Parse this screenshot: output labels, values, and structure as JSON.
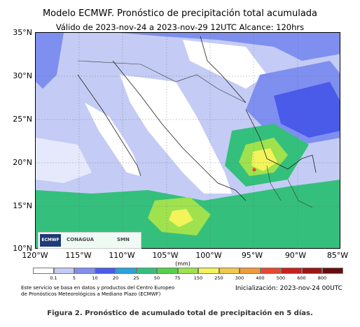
{
  "header": {
    "title": "Modelo ECMWF. Pronóstico de precipitación total acumulada",
    "subtitle": "Válido de 2023-nov-24 a 2023-nov-29 12UTC   Alcance: 120hrs"
  },
  "map": {
    "lat_labels": [
      "35°N",
      "30°N",
      "25°N",
      "20°N",
      "15°N",
      "10°N"
    ],
    "lon_labels": [
      "120°W",
      "115°W",
      "110°W",
      "105°W",
      "100°W",
      "95°W",
      "90°W",
      "85°W"
    ],
    "extent": {
      "lon_min": -120,
      "lon_max": -85,
      "lat_min": 10,
      "lat_max": 35
    },
    "logos": {
      "ecmwf": "ECMWF",
      "conagua": "CONAGUA",
      "smn": "SMN"
    }
  },
  "colorbar": {
    "unit": "(mm)",
    "ticks": [
      "0.1",
      "5",
      "10",
      "20",
      "25",
      "50",
      "75",
      "150",
      "250",
      "300",
      "400",
      "500",
      "600",
      "800"
    ],
    "colors": [
      "#ffffff",
      "#c4ccf5",
      "#7f8ff0",
      "#4a5bea",
      "#2aa3d8",
      "#34c07c",
      "#56d04a",
      "#9fe24e",
      "#f2f45a",
      "#f2c94a",
      "#f09a3a",
      "#e5482e",
      "#c8201e",
      "#9c1414",
      "#6a0c0c"
    ]
  },
  "footer": {
    "disclaimer_line1": "Este servicio se basa en datos y productos del Centro Europeo",
    "disclaimer_line2": "de Pronósticos Meteorológicos a Mediano Plazo (ECMWF)",
    "initialization": "Inicialización: 2023-nov-24 00UTC",
    "caption": "Figura 2. Pronóstico de acumulado total de precipitación en 5 días."
  }
}
